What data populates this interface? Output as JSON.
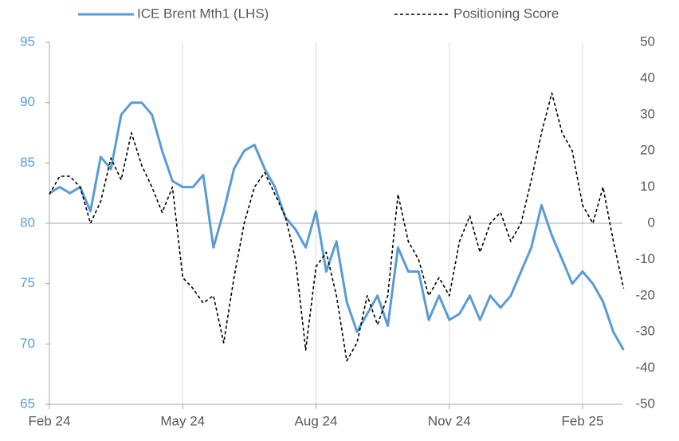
{
  "chart_data": {
    "type": "line",
    "categories": [
      "Feb 24",
      null,
      null,
      null,
      null,
      null,
      null,
      null,
      null,
      null,
      null,
      null,
      null,
      "May 24",
      null,
      null,
      null,
      null,
      null,
      null,
      null,
      null,
      null,
      null,
      null,
      null,
      "Aug 24",
      null,
      null,
      null,
      null,
      null,
      null,
      null,
      null,
      null,
      null,
      null,
      null,
      "Nov 24",
      null,
      null,
      null,
      null,
      null,
      null,
      null,
      null,
      null,
      null,
      null,
      null,
      "Feb 25",
      null,
      null,
      null,
      null
    ],
    "series": [
      {
        "name": "ICE Brent Mth1 (LHS)",
        "color": "#5b9bd5",
        "line_style": "solid",
        "values": [
          82.5,
          83,
          82.5,
          83,
          81,
          85.5,
          84.5,
          89,
          90,
          90,
          89,
          86,
          83.5,
          83,
          83,
          84,
          78,
          81,
          84.5,
          86,
          86.5,
          84.5,
          83,
          80.5,
          79.5,
          78,
          81,
          76,
          78.5,
          73.5,
          71,
          72.5,
          74,
          71.5,
          78,
          76,
          76,
          72,
          74,
          72,
          72.5,
          74,
          72,
          74,
          73,
          74,
          76,
          78,
          81.5,
          79,
          77,
          75,
          76,
          75,
          73.5,
          71,
          69.5
        ]
      },
      {
        "name": "Positioning Score",
        "color": "#000000",
        "line_style": "dashed",
        "axis": "y2",
        "values": [
          8,
          13,
          13,
          10,
          0,
          6,
          18,
          12,
          25,
          16,
          10,
          3,
          10,
          -15,
          -18,
          -22,
          -20,
          -33,
          -15,
          0,
          10,
          14,
          8,
          2,
          -10,
          -35,
          -12,
          -8,
          -20,
          -38,
          -33,
          -20,
          -28,
          -20,
          8,
          -5,
          -10,
          -20,
          -15,
          -20,
          -5,
          2,
          -8,
          0,
          3,
          -5,
          0,
          12,
          25,
          36,
          25,
          20,
          5,
          0,
          10,
          -5,
          -18
        ]
      }
    ],
    "ylim": [
      65,
      95
    ],
    "yticks": [
      65,
      70,
      75,
      80,
      85,
      90,
      95
    ],
    "y2lim": [
      -50,
      50
    ],
    "y2ticks": [
      -50,
      -40,
      -30,
      -20,
      -10,
      0,
      10,
      20,
      30,
      40,
      50
    ],
    "ytick_color": "#5b9bd5",
    "y2tick_color": "#595959",
    "legend": "top"
  }
}
